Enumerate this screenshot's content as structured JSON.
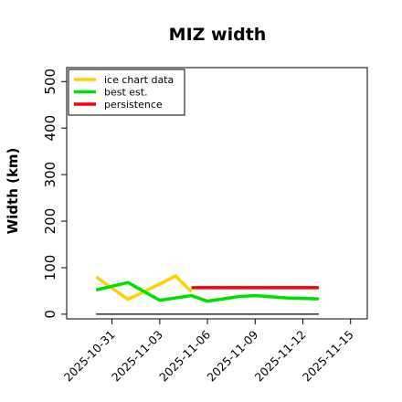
{
  "chart_data": {
    "type": "line",
    "title": "MIZ width",
    "xlabel": "",
    "ylabel": "Width (km)",
    "ylim": [
      -10,
      530
    ],
    "yticks": [
      0,
      100,
      200,
      300,
      400,
      500
    ],
    "xlim": [
      "2025-10-29",
      "2025-11-15"
    ],
    "xticks": [
      "2025-10-31",
      "2025-11-03",
      "2025-11-06",
      "2025-11-09",
      "2025-11-12",
      "2025-11-15"
    ],
    "legend_position": "top-left",
    "grid": false,
    "series": [
      {
        "name": "ice chart data",
        "color": "#ffd000",
        "x": [
          "2025-10-30",
          "2025-11-01",
          "2025-11-02",
          "2025-11-04",
          "2025-11-05"
        ],
        "y": [
          80,
          32,
          48,
          82,
          48
        ]
      },
      {
        "name": "best est.",
        "color": "#00e000",
        "x": [
          "2025-10-30",
          "2025-11-01",
          "2025-11-03",
          "2025-11-05",
          "2025-11-06",
          "2025-11-08",
          "2025-11-09",
          "2025-11-11",
          "2025-11-13"
        ],
        "y": [
          52,
          68,
          30,
          40,
          28,
          38,
          40,
          35,
          33
        ]
      },
      {
        "name": "persistence",
        "color": "#ff0000",
        "x": [
          "2025-11-05",
          "2025-11-13"
        ],
        "y": [
          57,
          57
        ]
      }
    ],
    "baseline": {
      "color": "#000000",
      "x": [
        "2025-10-30",
        "2025-11-13"
      ],
      "y": [
        0,
        0
      ]
    }
  }
}
